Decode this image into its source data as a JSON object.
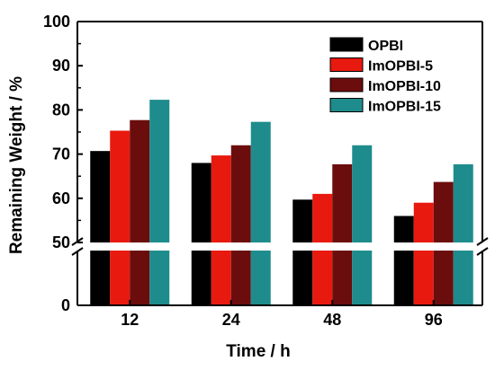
{
  "chart_data": {
    "type": "bar",
    "title": "",
    "xlabel": "Time / h",
    "ylabel": "Remaining Weight / %",
    "categories": [
      "12",
      "24",
      "48",
      "96"
    ],
    "series": [
      {
        "name": "OPBI",
        "color": "#000000",
        "values": [
          70.7,
          68.0,
          59.7,
          56.0
        ]
      },
      {
        "name": "ImOPBI-5",
        "color": "#e8190f",
        "values": [
          75.3,
          69.7,
          61.0,
          59.0
        ]
      },
      {
        "name": "ImOPBI-10",
        "color": "#6b0d0d",
        "values": [
          77.7,
          72.0,
          67.7,
          63.7
        ]
      },
      {
        "name": "ImOPBI-15",
        "color": "#1e8c8c",
        "values": [
          82.3,
          77.3,
          72.0,
          67.7
        ]
      }
    ],
    "y_ticks_upper": [
      50,
      60,
      70,
      80,
      90,
      100
    ],
    "y_ticks_lower": [
      0
    ],
    "ylim": [
      0,
      100
    ],
    "axis_break": [
      5,
      50
    ],
    "legend_position": "top-right",
    "grid": false
  }
}
